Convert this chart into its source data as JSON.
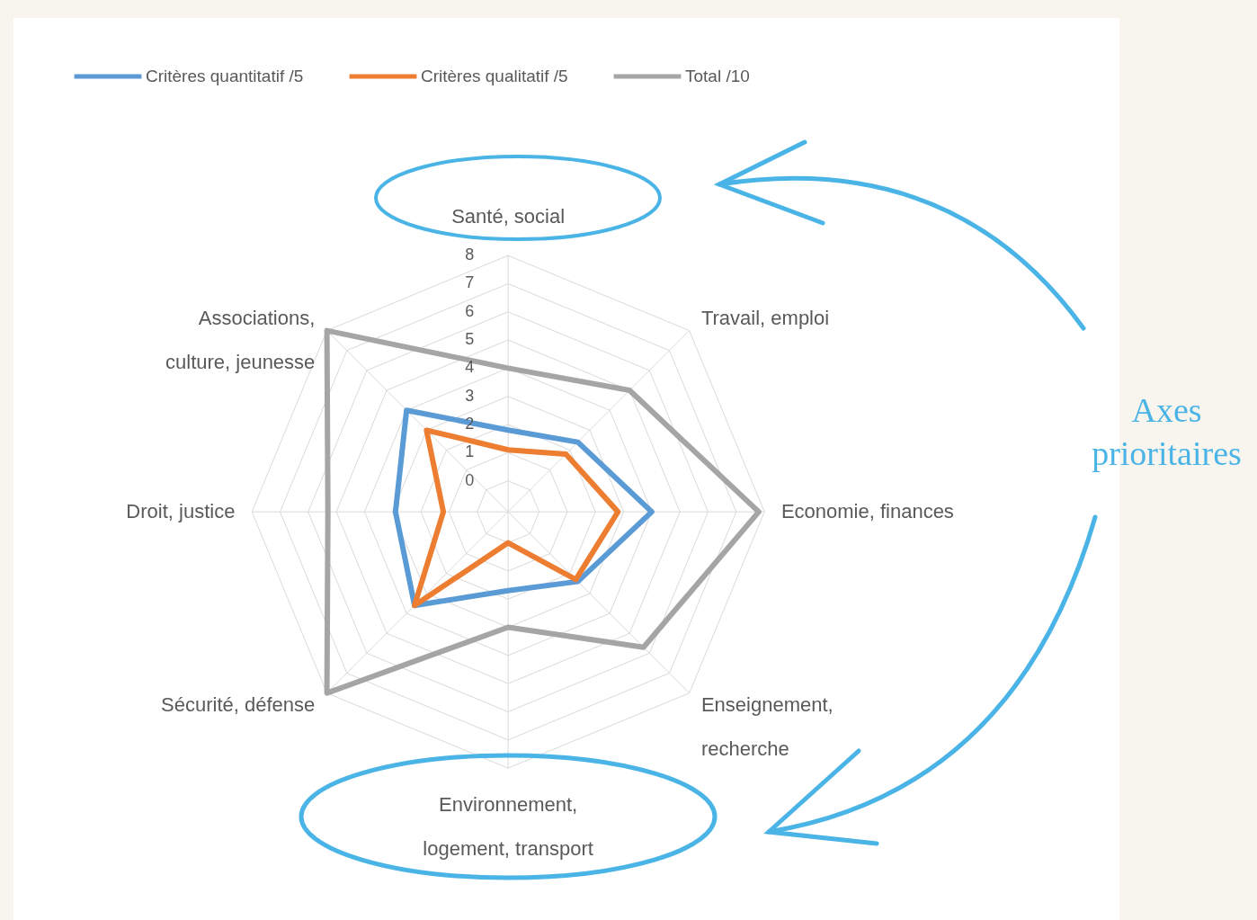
{
  "chart_data": {
    "type": "radar",
    "categories": [
      "Santé, social",
      "Travail, emploi",
      "Economie, finances",
      "Enseignement,\nrecherche",
      "Environnement,\nlogement, transport",
      "Sécurité, défense",
      "Droit, justice",
      "Associations,\nculture, jeunesse"
    ],
    "series": [
      {
        "name": "Critères quantitatif /5",
        "color": "#5b9bd5",
        "values": [
          1.8,
          2.4,
          4.0,
          2.4,
          1.7,
          3.6,
          2.9,
          4.0
        ]
      },
      {
        "name": "Critères qualitatif /5",
        "color": "#ed7d31",
        "values": [
          1.1,
          1.8,
          2.8,
          2.3,
          0,
          3.6,
          1.2,
          3.0
        ]
      },
      {
        "name": "Total /10",
        "color": "#a5a5a5",
        "values": [
          4.0,
          5.0,
          7.8,
          5.7,
          3.0,
          8.0,
          5.3,
          8.0
        ]
      }
    ],
    "ylim": [
      -1.1,
      8
    ],
    "yticks": [
      0,
      1,
      2,
      3,
      4,
      5,
      6,
      7,
      8
    ],
    "grid": true,
    "legend": "top",
    "annotations": [
      "Axes prioritaires"
    ]
  }
}
